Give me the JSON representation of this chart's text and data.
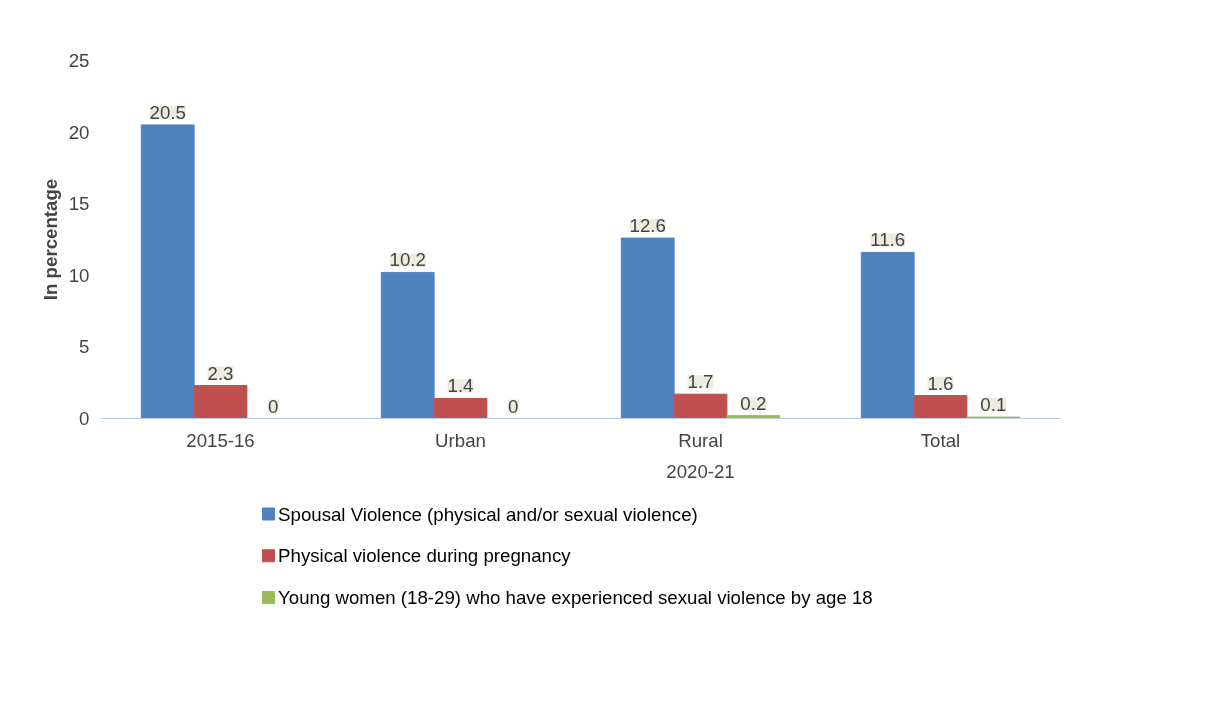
{
  "chart_data": {
    "type": "bar",
    "ylabel": "In percentage",
    "categories": [
      "2015-16",
      "Urban",
      "Rural",
      "Total"
    ],
    "series": [
      {
        "name": "Spousal Violence (physical and/or sexual violence)",
        "color": "#4f81bd",
        "values": [
          20.5,
          10.2,
          12.6,
          11.6
        ]
      },
      {
        "name": "Physical violence during pregnancy",
        "color": "#c0504d",
        "values": [
          2.3,
          1.4,
          1.7,
          1.6
        ]
      },
      {
        "name": "Young women (18-29) who have experienced sexual violence by age 18",
        "color": "#9bbb59",
        "values": [
          0,
          0,
          0.2,
          0.1
        ]
      }
    ],
    "annotations": [
      "2020-21"
    ],
    "ylim": [
      0,
      25
    ],
    "yticks": [
      0,
      5,
      10,
      15,
      20,
      25
    ],
    "grid": false,
    "legend": "bottom",
    "data_labels": true
  }
}
